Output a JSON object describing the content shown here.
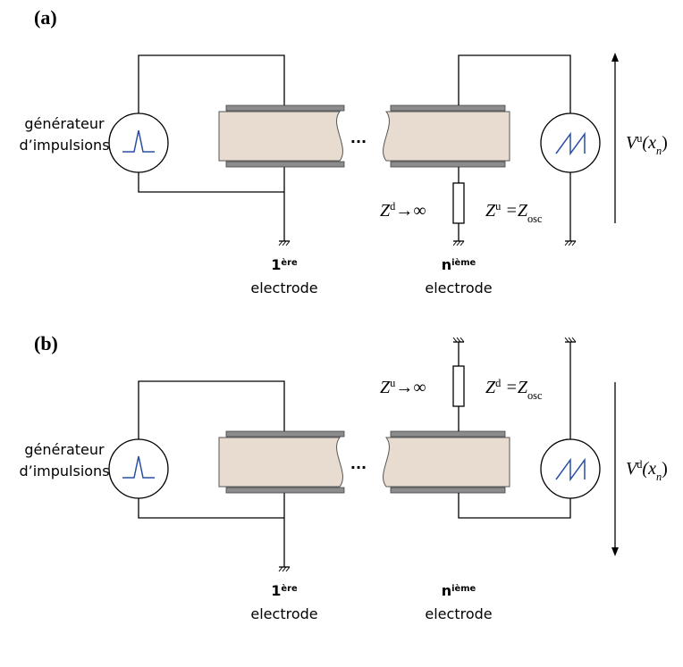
{
  "panels": [
    {
      "label": "(a)",
      "generator": [
        "générateur",
        "d’impulsions"
      ],
      "ellipsis": "...",
      "voltage": {
        "symbol": "V",
        "sup": "u",
        "arg": "(x",
        "sub": "n",
        "close": ")"
      },
      "first_electrode": {
        "number": "1",
        "sup": "ère",
        "word": "electrode"
      },
      "nth_electrode": {
        "number": "n",
        "sup": "ième",
        "word": "electrode"
      },
      "impedance_open": {
        "symbol": "Z",
        "sup": "d",
        "rest": "→∞"
      },
      "impedance_osc": {
        "symbol": "Z",
        "sup": "u",
        "eq": " =Z",
        "sub": "osc"
      }
    },
    {
      "label": "(b)",
      "generator": [
        "générateur",
        "d’impulsions"
      ],
      "ellipsis": "...",
      "voltage": {
        "symbol": "V",
        "sup": "d",
        "arg": "(x",
        "sub": "n",
        "close": ")"
      },
      "first_electrode": {
        "number": "1",
        "sup": "ère",
        "word": "electrode"
      },
      "nth_electrode": {
        "number": "n",
        "sup": "ième",
        "word": "electrode"
      },
      "impedance_open": {
        "symbol": "Z",
        "sup": "u",
        "rest": "→∞"
      },
      "impedance_osc": {
        "symbol": "Z",
        "sup": "d",
        "eq": " =Z",
        "sub": "osc"
      }
    }
  ]
}
